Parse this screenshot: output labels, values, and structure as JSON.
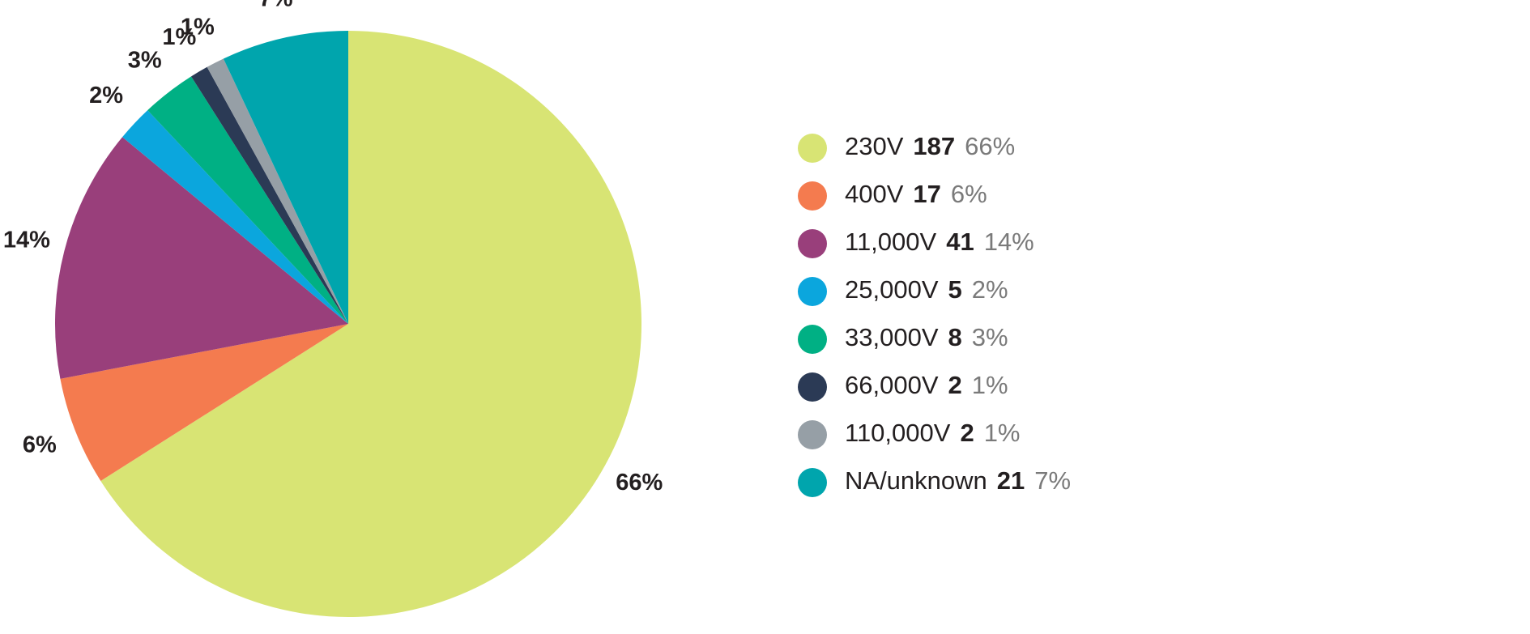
{
  "chart_data": {
    "type": "pie",
    "title": "",
    "start_angle_deg": 0,
    "direction": "clockwise",
    "slices": [
      {
        "label": "230V",
        "count": "187",
        "value": 66,
        "pct_label": "66%",
        "color": "#d8e474"
      },
      {
        "label": "400V",
        "count": "17",
        "value": 6,
        "pct_label": "6%",
        "color": "#f47b4f"
      },
      {
        "label": "11,000V",
        "count": "41",
        "value": 14,
        "pct_label": "14%",
        "color": "#993f7b"
      },
      {
        "label": "25,000V",
        "count": "5",
        "value": 2,
        "pct_label": "2%",
        "color": "#0ba6dd"
      },
      {
        "label": "33,000V",
        "count": "8",
        "value": 3,
        "pct_label": "3%",
        "color": "#00b084"
      },
      {
        "label": "66,000V",
        "count": "2",
        "value": 1,
        "pct_label": "1%",
        "color": "#2b3a55"
      },
      {
        "label": "110,000V",
        "count": "2",
        "value": 1,
        "pct_label": "1%",
        "color": "#969fa6"
      },
      {
        "label": "NA/unknown",
        "count": "21",
        "value": 7,
        "pct_label": "7%",
        "color": "#00a5ad"
      }
    ],
    "legend_position": "right"
  }
}
